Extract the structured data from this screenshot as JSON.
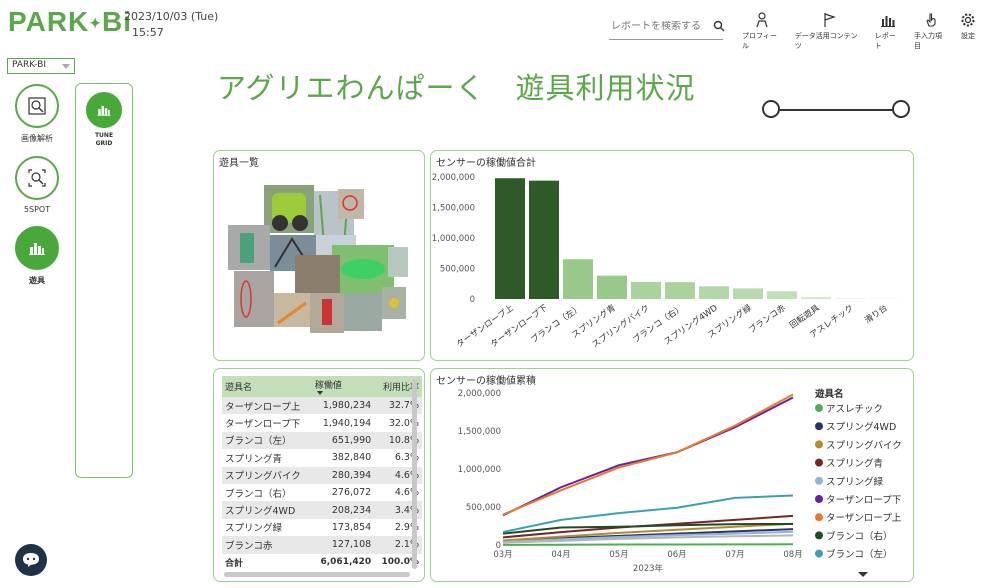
{
  "header": {
    "logo": "PARK",
    "logo_suffix": "Bi",
    "date": "2023/10/03 (Tue)",
    "time": "15:57",
    "search_placeholder": "レポートを検索する",
    "nav": [
      {
        "label": "プロフィール",
        "icon": "person-icon"
      },
      {
        "label": "データ活用コンテンツ",
        "icon": "flag-icon"
      },
      {
        "label": "レポート",
        "icon": "bar-chart-icon"
      },
      {
        "label": "手入力項目",
        "icon": "hand-icon"
      },
      {
        "label": "設定",
        "icon": "gear-icon"
      }
    ]
  },
  "sidebar": {
    "select_value": "PARK-BI",
    "items": [
      {
        "label": "画像解析",
        "icon": "image-search-icon"
      },
      {
        "label": "5SPOT",
        "icon": "spot-search-icon"
      },
      {
        "label": "遊具",
        "icon": "bar-chart-icon"
      }
    ],
    "sub": {
      "label_line1": "TUNE",
      "label_line2": "GRID"
    }
  },
  "page_title": "アグリエわんぱーく　遊具利用状況",
  "cards": {
    "photos_title": "遊具一覧",
    "bar_title": "センサーの稼働値合計",
    "line_title": "センサーの稼働値累積"
  },
  "table": {
    "headers": [
      "遊具名",
      "稼働値",
      "利用比率"
    ],
    "rows": [
      [
        "ターザンロープ上",
        "1,980,234",
        "32.7%"
      ],
      [
        "ターザンロープ下",
        "1,940,194",
        "32.0%"
      ],
      [
        "ブランコ（左）",
        "651,990",
        "10.8%"
      ],
      [
        "スプリング青",
        "382,840",
        "6.3%"
      ],
      [
        "スプリングバイク",
        "280,394",
        "4.6%"
      ],
      [
        "ブランコ（右）",
        "276,072",
        "4.6%"
      ],
      [
        "スプリング4WD",
        "208,234",
        "3.4%"
      ],
      [
        "スプリング緑",
        "173,854",
        "2.9%"
      ],
      [
        "ブランコ赤",
        "127,108",
        "2.1%"
      ]
    ],
    "total": [
      "合計",
      "6,061,420",
      "100.0%"
    ]
  },
  "chart_data": [
    {
      "type": "bar",
      "title": "センサーの稼働値合計",
      "categories": [
        "ターザンロープ上",
        "ターザンロープ下",
        "ブランコ（左）",
        "スプリング青",
        "スプリングバイク",
        "ブランコ（右）",
        "スプリング4WD",
        "スプリング緑",
        "ブランコ赤",
        "回転遊具",
        "アスレチック",
        "滑り台"
      ],
      "values": [
        1980234,
        1940194,
        651990,
        382840,
        280394,
        276072,
        208234,
        173854,
        127108,
        30000,
        10000,
        5000
      ],
      "ylim": [
        0,
        2000000
      ],
      "yticks": [
        "2,000,000",
        "1,500,000",
        "1,000,000",
        "500,000",
        "0"
      ],
      "colors": [
        "#2d5a27",
        "#2d5a27",
        "#98c98b",
        "#98c98b",
        "#a9d29d",
        "#a9d29d",
        "#b3d7a8",
        "#b8dab0",
        "#c0dfb7",
        "#cfe6c8",
        "#d8ebd2",
        "#dfeeda"
      ]
    },
    {
      "type": "line",
      "title": "センサーの稼働値累積",
      "x": [
        "03月",
        "04月",
        "05月",
        "06月",
        "07月",
        "08月"
      ],
      "xlabel": "2023年",
      "ylim": [
        0,
        2000000
      ],
      "yticks": [
        "2,000,000",
        "1,500,000",
        "1,000,000",
        "500,000",
        "0"
      ],
      "legend_title": "遊具名",
      "legend_placement": "right",
      "series": [
        {
          "name": "アスレチック",
          "color": "#4caf50",
          "values": [
            2000,
            4000,
            6000,
            7000,
            8000,
            10000
          ]
        },
        {
          "name": "スプリング4WD",
          "color": "#2a3566",
          "values": [
            50000,
            90000,
            120000,
            150000,
            180000,
            208234
          ]
        },
        {
          "name": "スプリングバイク",
          "color": "#b38b2e",
          "values": [
            60000,
            110000,
            160000,
            200000,
            240000,
            280394
          ]
        },
        {
          "name": "スプリング青",
          "color": "#7a2424",
          "values": [
            100000,
            170000,
            230000,
            280000,
            330000,
            382840
          ]
        },
        {
          "name": "スプリング緑",
          "color": "#8fb3d9",
          "values": [
            40000,
            75000,
            105000,
            130000,
            150000,
            173854
          ]
        },
        {
          "name": "ターザンロープ下",
          "color": "#6a1fa0",
          "values": [
            390000,
            760000,
            1050000,
            1220000,
            1550000,
            1940194
          ]
        },
        {
          "name": "ターザンロープ上",
          "color": "#e8792b",
          "values": [
            400000,
            720000,
            1020000,
            1220000,
            1570000,
            1980234
          ]
        },
        {
          "name": "ブランコ（右）",
          "color": "#214a2c",
          "values": [
            150000,
            230000,
            240000,
            260000,
            275000,
            276072
          ]
        },
        {
          "name": "ブランコ（左）",
          "color": "#3aa0b5",
          "values": [
            170000,
            330000,
            420000,
            490000,
            620000,
            651990
          ]
        },
        {
          "name": "ブランコ赤",
          "color": "#b5b5b5",
          "values": [
            30000,
            55000,
            80000,
            100000,
            115000,
            127108
          ]
        }
      ]
    }
  ]
}
